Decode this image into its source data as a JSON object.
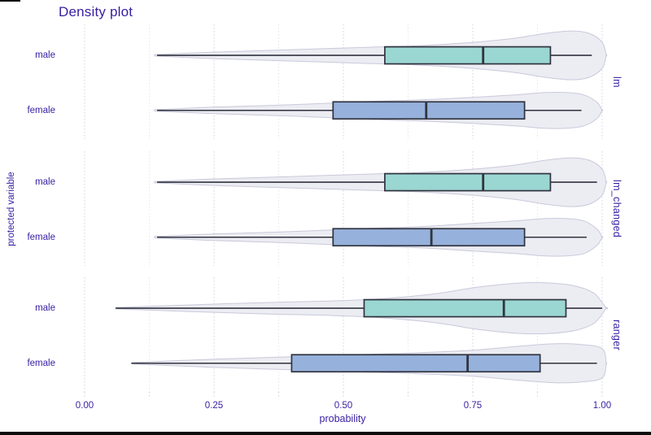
{
  "title": "Density plot",
  "axes": {
    "x": {
      "label": "probability",
      "range": [
        0,
        1
      ],
      "major_ticks": [
        {
          "value": 0.0,
          "label": "0.00"
        },
        {
          "value": 0.25,
          "label": "0.25"
        },
        {
          "value": 0.5,
          "label": "0.50"
        },
        {
          "value": 0.75,
          "label": "0.75"
        },
        {
          "value": 1.0,
          "label": "1.00"
        }
      ],
      "minor_tick_values": [
        0.125,
        0.375,
        0.625,
        0.875
      ]
    },
    "y": {
      "label": "protected variable",
      "categories": [
        "male",
        "female"
      ]
    }
  },
  "colors": {
    "text": "#371ea3",
    "male_fill": "#9bd7d2",
    "female_fill": "#96b1db",
    "box_stroke": "#30333e",
    "violin_fill": "#eaeaf2",
    "violin_stroke": "#c9c9db",
    "grid_major": "#d9d9e4",
    "grid_minor": "#e7e7f0",
    "tick_stub": "#d4d4de"
  },
  "chart_data": {
    "type": "violin+boxplot",
    "orientation": "horizontal",
    "x_range": [
      0,
      1
    ],
    "grid": "dotted-vertical",
    "legend": "none",
    "facets": [
      {
        "label": "lm",
        "rows": [
          {
            "category": "male",
            "fill_key": "male_fill",
            "box": {
              "min": 0.14,
              "q1": 0.58,
              "median": 0.77,
              "q3": 0.9,
              "max": 0.98
            },
            "violin_profile": [
              [
                0.135,
                0.8
              ],
              [
                0.25,
                4
              ],
              [
                0.4,
                7
              ],
              [
                0.55,
                10
              ],
              [
                0.65,
                12
              ],
              [
                0.75,
                16
              ],
              [
                0.83,
                21
              ],
              [
                0.89,
                27
              ],
              [
                0.94,
                30
              ],
              [
                0.975,
                27
              ],
              [
                1.0,
                16
              ],
              [
                1.008,
                0
              ]
            ]
          },
          {
            "category": "female",
            "fill_key": "female_fill",
            "box": {
              "min": 0.14,
              "q1": 0.48,
              "median": 0.66,
              "q3": 0.85,
              "max": 0.96
            },
            "violin_profile": [
              [
                0.135,
                0.8
              ],
              [
                0.25,
                4
              ],
              [
                0.4,
                7
              ],
              [
                0.55,
                11
              ],
              [
                0.65,
                13
              ],
              [
                0.75,
                16
              ],
              [
                0.83,
                19
              ],
              [
                0.89,
                22
              ],
              [
                0.93,
                22
              ],
              [
                0.965,
                19
              ],
              [
                0.99,
                10
              ],
              [
                1.0,
                0
              ]
            ]
          }
        ]
      },
      {
        "label": "lm_changed",
        "rows": [
          {
            "category": "male",
            "fill_key": "male_fill",
            "box": {
              "min": 0.14,
              "q1": 0.58,
              "median": 0.77,
              "q3": 0.9,
              "max": 0.99
            },
            "violin_profile": [
              [
                0.135,
                0.8
              ],
              [
                0.25,
                4
              ],
              [
                0.4,
                7
              ],
              [
                0.55,
                10
              ],
              [
                0.65,
                12
              ],
              [
                0.75,
                16
              ],
              [
                0.83,
                21
              ],
              [
                0.89,
                27
              ],
              [
                0.94,
                30
              ],
              [
                0.975,
                27
              ],
              [
                1.0,
                16
              ],
              [
                1.008,
                0
              ]
            ]
          },
          {
            "category": "female",
            "fill_key": "female_fill",
            "box": {
              "min": 0.14,
              "q1": 0.48,
              "median": 0.67,
              "q3": 0.85,
              "max": 0.97
            },
            "violin_profile": [
              [
                0.135,
                0.8
              ],
              [
                0.25,
                4
              ],
              [
                0.4,
                7
              ],
              [
                0.55,
                11
              ],
              [
                0.65,
                13
              ],
              [
                0.75,
                17
              ],
              [
                0.83,
                20
              ],
              [
                0.89,
                23
              ],
              [
                0.93,
                23
              ],
              [
                0.965,
                20
              ],
              [
                0.99,
                10
              ],
              [
                1.0,
                0
              ]
            ]
          }
        ]
      },
      {
        "label": "ranger",
        "rows": [
          {
            "category": "male",
            "fill_key": "male_fill",
            "box": {
              "min": 0.06,
              "q1": 0.54,
              "median": 0.81,
              "q3": 0.93,
              "max": 1.0
            },
            "violin_profile": [
              [
                0.06,
                0.8
              ],
              [
                0.2,
                4
              ],
              [
                0.35,
                7
              ],
              [
                0.48,
                9
              ],
              [
                0.58,
                12
              ],
              [
                0.68,
                18
              ],
              [
                0.76,
                26
              ],
              [
                0.84,
                31
              ],
              [
                0.9,
                31
              ],
              [
                0.95,
                27
              ],
              [
                0.985,
                18
              ],
              [
                1.008,
                0
              ]
            ]
          },
          {
            "category": "female",
            "fill_key": "female_fill",
            "box": {
              "min": 0.09,
              "q1": 0.4,
              "median": 0.74,
              "q3": 0.88,
              "max": 0.99
            },
            "violin_profile": [
              [
                0.093,
                0.8
              ],
              [
                0.25,
                5
              ],
              [
                0.4,
                8
              ],
              [
                0.55,
                11
              ],
              [
                0.65,
                13
              ],
              [
                0.75,
                16
              ],
              [
                0.84,
                21
              ],
              [
                0.91,
                24
              ],
              [
                0.96,
                23
              ],
              [
                1.0,
                18
              ],
              [
                1.015,
                0
              ]
            ]
          }
        ]
      }
    ]
  }
}
